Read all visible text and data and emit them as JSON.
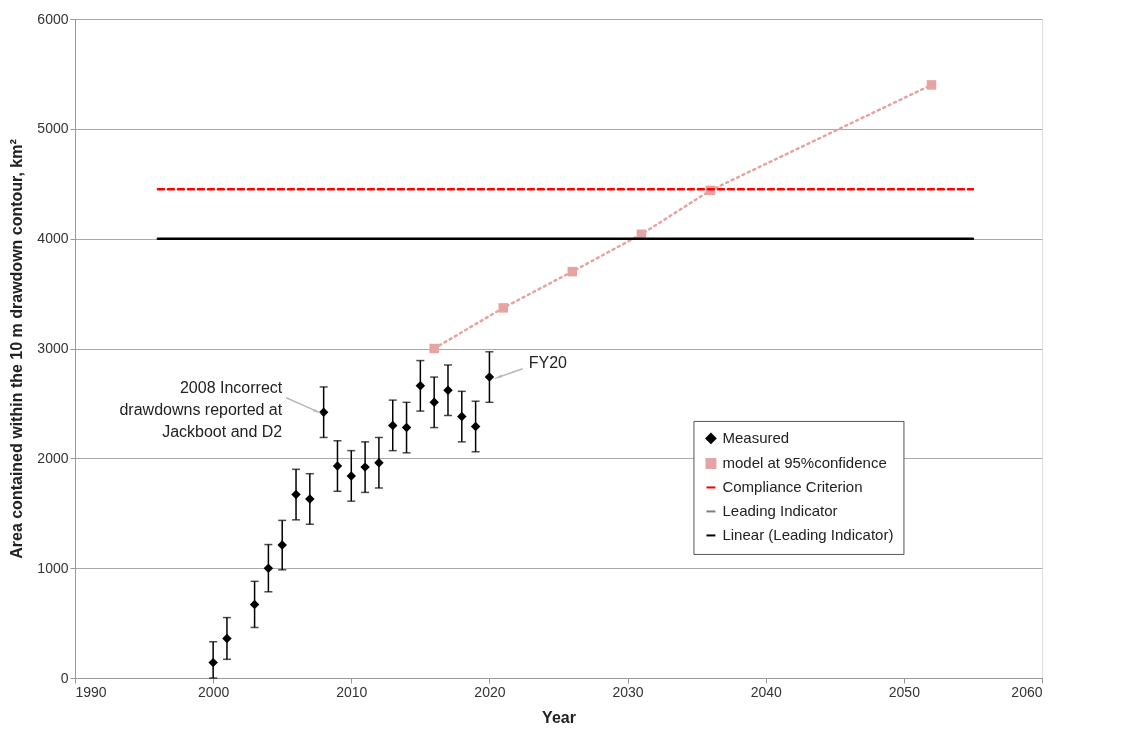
{
  "chart_data": {
    "type": "scatter",
    "xlabel": "Year",
    "ylabel": "Area contained within the 10 m drawdown contour, km²",
    "xlim": [
      1990,
      2060
    ],
    "xticks": [
      1990,
      2000,
      2010,
      2020,
      2030,
      2040,
      2050,
      2060
    ],
    "ylim": [
      0,
      6000
    ],
    "yticks": [
      0,
      1000,
      2000,
      3000,
      4000,
      5000,
      6000
    ],
    "grid": "y",
    "legend": "bottom right",
    "series": [
      {
        "name": "Measured",
        "type": "scatter",
        "color": "#000000",
        "marker": "diamond",
        "x": [
          2000,
          2001,
          2003,
          2004,
          2005,
          2006,
          2007,
          2008,
          2009,
          2010,
          2011,
          2012,
          2013,
          2014,
          2015,
          2016,
          2017,
          2018,
          2019,
          2020
        ],
        "values": [
          140,
          360,
          670,
          1000,
          1210,
          1670,
          1630,
          2420,
          1930,
          1840,
          1920,
          1960,
          2300,
          2280,
          2660,
          2510,
          2620,
          2380,
          2290,
          2740
        ],
        "errors": [
          [
            0,
            330
          ],
          190,
          210,
          215,
          225,
          230,
          230,
          230,
          230,
          230,
          230,
          230,
          230,
          230,
          230,
          230,
          230,
          230,
          230,
          230
        ]
      },
      {
        "name": "model at 95%confidence",
        "type": "line",
        "color": "#e5a3a1",
        "marker": "square",
        "line_style": "dotted",
        "x": [
          2016,
          2021,
          2026,
          2031,
          2036,
          2052
        ],
        "values": [
          3000,
          3370,
          3700,
          4040,
          4440,
          5400
        ]
      },
      {
        "name": "Compliance Criterion",
        "type": "line",
        "color": "#ff0000",
        "marker": "none",
        "line_style": "dashed",
        "x": [
          1996,
          2055
        ],
        "values": [
          4450,
          4450
        ]
      },
      {
        "name": "Leading Indicator",
        "type": "line",
        "color": "#808080",
        "marker": "none",
        "line_style": "dashed"
      },
      {
        "name": "Linear (Leading Indicator)",
        "type": "line",
        "color": "#000000",
        "marker": "none",
        "line_style": "solid",
        "x": [
          1996,
          2055
        ],
        "values": [
          4000,
          4000
        ]
      }
    ],
    "annotations": [
      {
        "text": "2008 Incorrect drawdowns reported at Jackboot and D2",
        "x": 2008,
        "y": 2420
      },
      {
        "text": "FY20",
        "x": 2020,
        "y": 2740
      }
    ]
  }
}
